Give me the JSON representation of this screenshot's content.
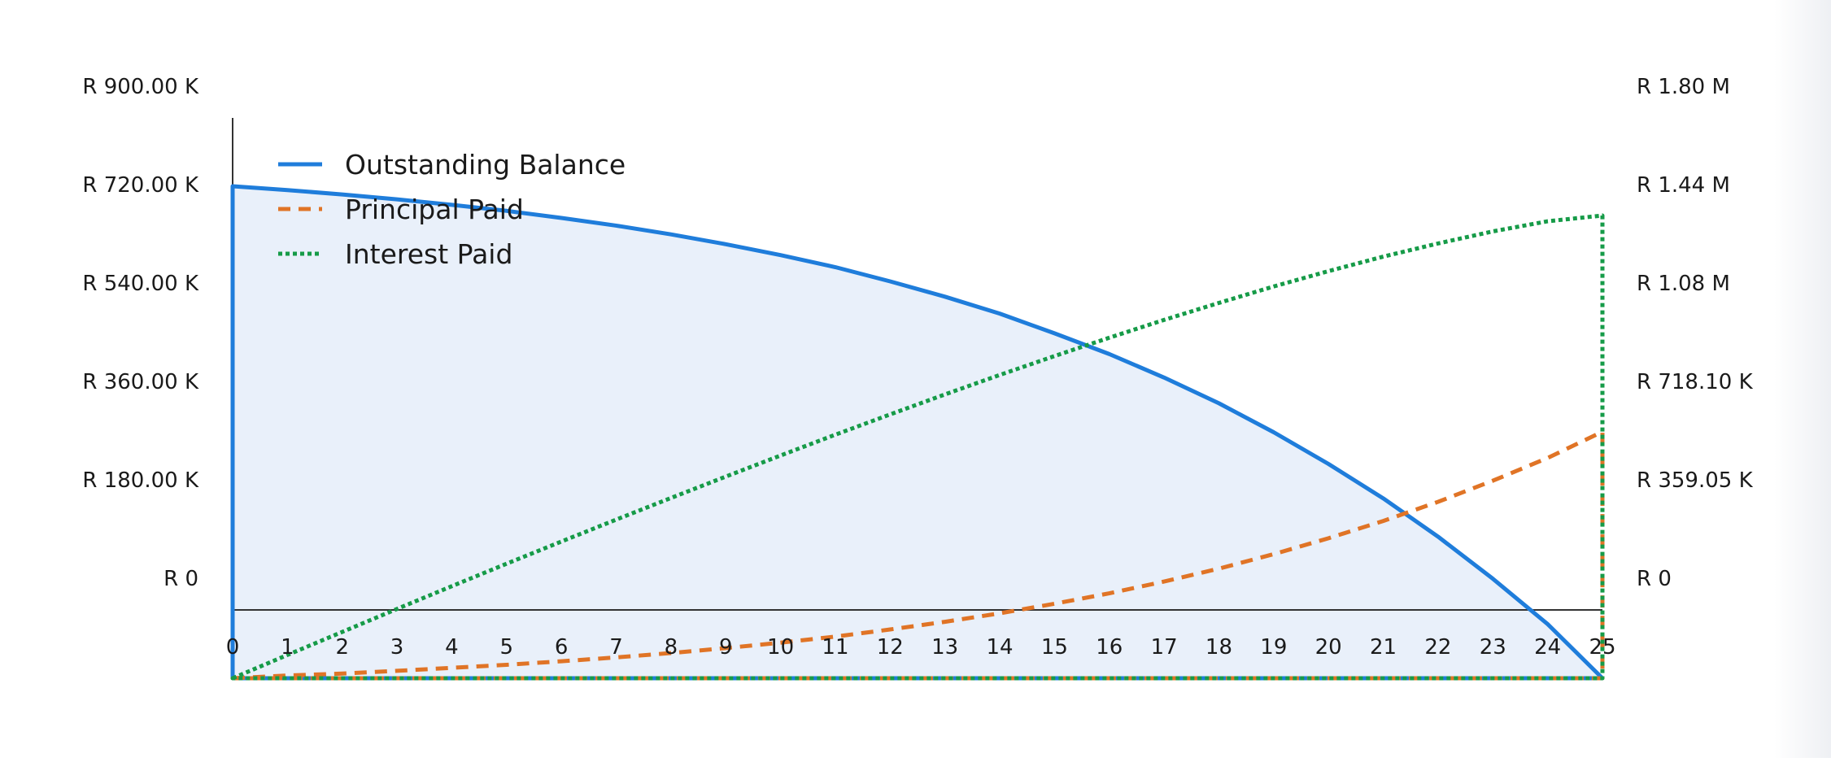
{
  "chart_data": {
    "type": "line",
    "x": [
      0,
      1,
      2,
      3,
      4,
      5,
      6,
      7,
      8,
      9,
      10,
      11,
      12,
      13,
      14,
      15,
      16,
      17,
      18,
      19,
      20,
      21,
      22,
      23,
      24,
      25
    ],
    "xlim": [
      0,
      25
    ],
    "x_tick_labels": [
      "0",
      "1",
      "2",
      "3",
      "4",
      "5",
      "6",
      "7",
      "8",
      "9",
      "10",
      "11",
      "12",
      "13",
      "14",
      "15",
      "16",
      "17",
      "18",
      "19",
      "20",
      "21",
      "22",
      "23",
      "24",
      "25"
    ],
    "left_axis": {
      "ylim": [
        -125000,
        900000
      ],
      "ticks": [
        0,
        180000,
        360000,
        540000,
        720000,
        900000
      ],
      "tick_labels": [
        "R 0",
        "R 180.00 K",
        "R 360.00 K",
        "R 540.00 K",
        "R 720.00 K",
        "R 900.00 K"
      ]
    },
    "right_axis": {
      "ylim": [
        -250000,
        1795250
      ],
      "ticks": [
        0,
        359050,
        718100,
        1077150,
        1436200,
        1795250
      ],
      "tick_labels": [
        "R 0",
        "R 359.05 K",
        "R 718.10 K",
        "R 1.08 M",
        "R 1.44 M",
        "R 1.80 M"
      ]
    },
    "series": [
      {
        "name": "Outstanding Balance",
        "axis": "left",
        "color": "#1f7ddb",
        "style": "solid",
        "fill": "#e9f0fa",
        "values": [
          775000,
          768000,
          760000,
          751000,
          741000,
          730000,
          717000,
          703000,
          687000,
          669000,
          649000,
          627000,
          601000,
          573000,
          542000,
          506000,
          468000,
          425000,
          378000,
          325000,
          267000,
          204000,
          134000,
          57000,
          -26000,
          -125000
        ]
      },
      {
        "name": "Principal Paid",
        "axis": "right",
        "color": "#e07426",
        "style": "dashed",
        "values": [
          -250000,
          -240000,
          -233000,
          -223000,
          -212000,
          -201000,
          -188000,
          -174000,
          -158000,
          -140000,
          -120000,
          -98000,
          -72000,
          -44000,
          -13000,
          22000,
          60000,
          103000,
          150000,
          203000,
          261000,
          324000,
          394000,
          471000,
          554000,
          650000
        ]
      },
      {
        "name": "Interest Paid",
        "axis": "right",
        "color": "#169b48",
        "style": "dotted",
        "values": [
          -250000,
          -165000,
          -81000,
          3000,
          86000,
          168000,
          249000,
          329000,
          408000,
          486000,
          563000,
          639000,
          713000,
          786000,
          857000,
          926000,
          993000,
          1058000,
          1120000,
          1180000,
          1236000,
          1289000,
          1337000,
          1381000,
          1418000,
          1439000
        ]
      }
    ],
    "legend_position": "top-left",
    "grid": false
  }
}
